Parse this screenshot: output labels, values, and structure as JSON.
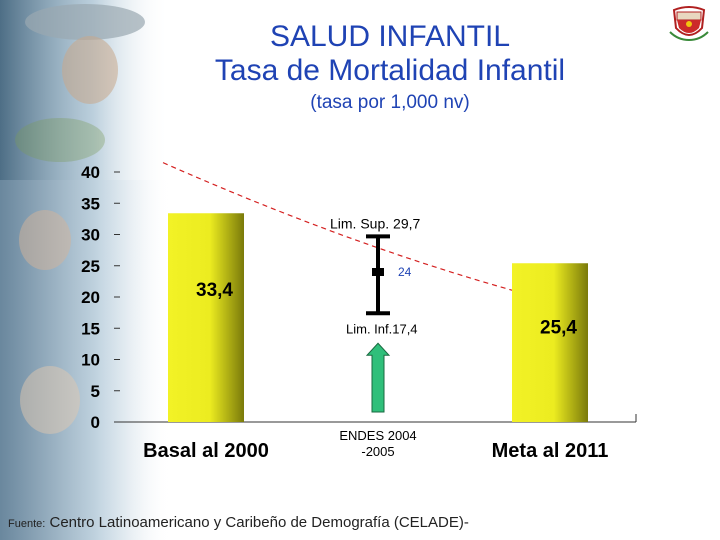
{
  "slide": {
    "title_line1": "SALUD INFANTIL",
    "title_line2": "Tasa de Mortalidad Infantil",
    "subtitle": "(tasa por 1,000 nv)",
    "source_label": "Fuente:",
    "source_text": "Centro Latinoamericano y Caribeño de Demografía (CELADE)-",
    "seal_icon": "coat-of-arms-icon"
  },
  "chart_data": {
    "type": "bar",
    "categories": [
      "Basal al 2000",
      "ENDES 2004 -2005",
      "Meta al 2011"
    ],
    "values": [
      33.4,
      null,
      25.4
    ],
    "value_labels": [
      "33,4",
      "",
      "25,4"
    ],
    "ylim": [
      0,
      40
    ],
    "yticks": [
      0,
      5,
      10,
      15,
      20,
      25,
      30,
      35,
      40
    ],
    "bar_color": "#f2f226",
    "bar_shade_color": "#7a7a0a",
    "trend_color": "#d42020",
    "trend_style": "dashed",
    "trend_points": [
      [
        0.1,
        41.5
      ],
      [
        1.0,
        29.5
      ],
      [
        2.0,
        21.5
      ]
    ],
    "error_bar": {
      "category": "ENDES 2004 -2005",
      "lower": 17.4,
      "upper": 29.7,
      "point": 24,
      "upper_label": "Lim. Sup. 29,7",
      "lower_label": "Lim. Inf.17,4",
      "point_label": "24",
      "arrow_color": "#2fbf7a",
      "arrow_direction": "up"
    },
    "grid": false
  }
}
